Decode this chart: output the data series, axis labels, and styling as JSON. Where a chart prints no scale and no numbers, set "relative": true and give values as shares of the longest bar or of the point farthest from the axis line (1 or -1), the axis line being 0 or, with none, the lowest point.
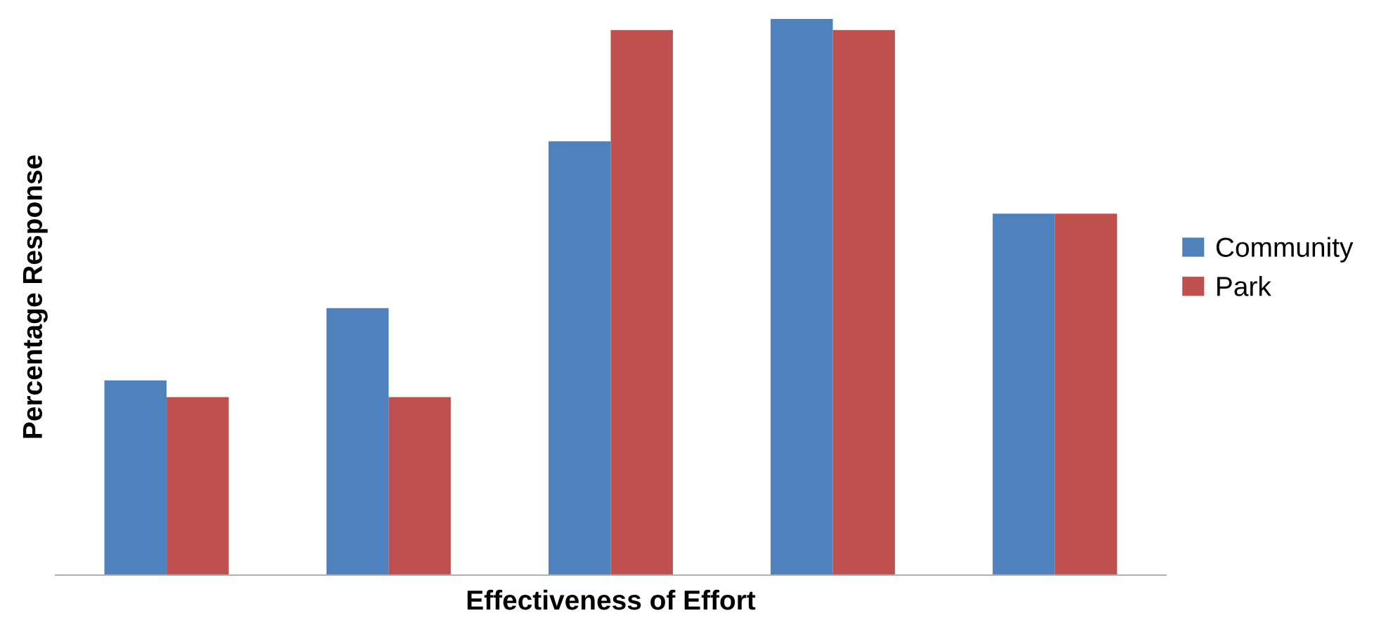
{
  "chart_data": {
    "type": "bar",
    "relative": true,
    "xlabel": "Effectiveness of Effort",
    "ylabel": "Percentage Response",
    "categories": [
      null,
      null,
      null,
      null,
      null
    ],
    "series": [
      {
        "name": "Community",
        "color": "#4f81bd",
        "values": [
          0.35,
          0.48,
          0.78,
          1,
          0.65
        ]
      },
      {
        "name": "Park",
        "color": "#c0504d",
        "values": [
          0.32,
          0.32,
          0.98,
          0.98,
          0.65
        ]
      }
    ],
    "legend": "right",
    "grid": false
  }
}
